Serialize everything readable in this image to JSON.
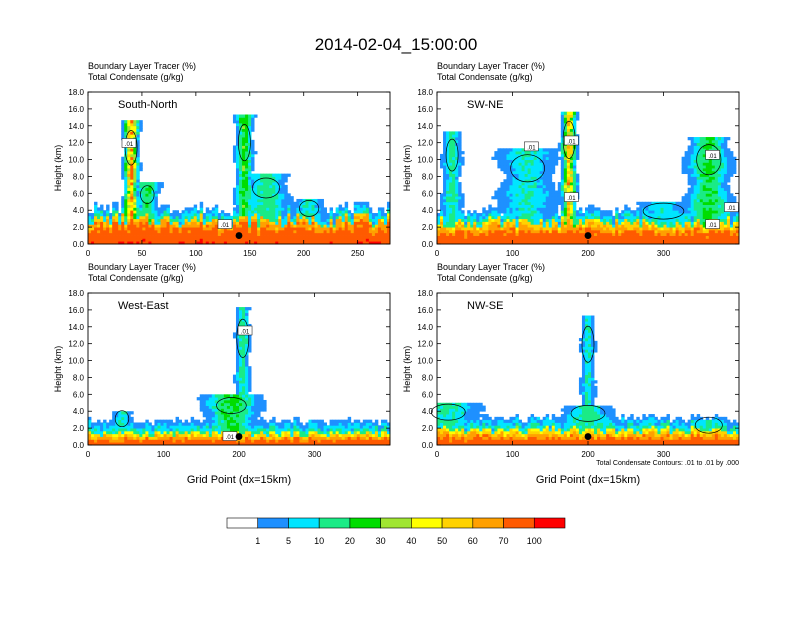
{
  "title": "2014-02-04_15:00:00",
  "chart_data": [
    {
      "type": "heatmap",
      "panel": "south-north",
      "subtitle_line1": "Boundary Layer Tracer   (%)",
      "subtitle_line2": "Total Condensate   (g/kg)",
      "label": "South-North",
      "ylabel": "Height (km)",
      "xlabel": "",
      "xlim": [
        0,
        280
      ],
      "ylim": [
        0,
        18
      ],
      "xticks": [
        "0",
        "50",
        "100",
        "150",
        "200",
        "250"
      ],
      "xtick_values": [
        0,
        50,
        100,
        150,
        200,
        250
      ],
      "yticks": [
        "0.0",
        "2.0",
        "4.0",
        "6.0",
        "8.0",
        "10.0",
        "12.0",
        "14.0",
        "16.0",
        "18.0"
      ],
      "marker": {
        "x": 140,
        "y": 1.0
      },
      "contour_labels": [
        {
          "text": ".01",
          "x": 38,
          "y": 11.9
        },
        {
          "text": ".01",
          "x": 127,
          "y": 2.3
        }
      ],
      "plumes": [
        {
          "x": 40,
          "w": 4,
          "h": 14.6,
          "v": 62
        },
        {
          "x": 55,
          "w": 7,
          "h": 7.5,
          "v": 18
        },
        {
          "x": 145,
          "w": 5,
          "h": 15.4,
          "v": 25
        },
        {
          "x": 165,
          "w": 14,
          "h": 8.5,
          "v": 14
        },
        {
          "x": 205,
          "w": 10,
          "h": 5.4,
          "v": 10
        }
      ],
      "layer": {
        "base": 55,
        "depth": 2.6
      }
    },
    {
      "type": "heatmap",
      "panel": "sw-ne",
      "subtitle_line1": "Boundary Layer Tracer   (%)",
      "subtitle_line2": "Total Condensate   (g/kg)",
      "label": "SW-NE",
      "ylabel": "Height (km)",
      "xlabel": "",
      "xlim": [
        0,
        400
      ],
      "ylim": [
        0,
        18
      ],
      "xticks": [
        "0",
        "100",
        "200",
        "300"
      ],
      "xtick_values": [
        0,
        100,
        200,
        300
      ],
      "yticks": [
        "0.0",
        "2.0",
        "4.0",
        "6.0",
        "8.0",
        "10.0",
        "12.0",
        "14.0",
        "16.0",
        "18.0"
      ],
      "marker": {
        "x": 200,
        "y": 1.0
      },
      "contour_labels": [
        {
          "text": ".01",
          "x": 125,
          "y": 11.5
        },
        {
          "text": ".01",
          "x": 178,
          "y": 12.2
        },
        {
          "text": ".01",
          "x": 178,
          "y": 5.5
        },
        {
          "text": ".01",
          "x": 365,
          "y": 10.5
        },
        {
          "text": ".01",
          "x": 390,
          "y": 4.3
        },
        {
          "text": ".01",
          "x": 365,
          "y": 2.3
        }
      ],
      "plumes": [
        {
          "x": 20,
          "w": 8,
          "h": 13.5,
          "v": 14
        },
        {
          "x": 175,
          "w": 6,
          "h": 15.8,
          "v": 55
        },
        {
          "x": 120,
          "w": 25,
          "h": 11.5,
          "v": 10
        },
        {
          "x": 360,
          "w": 18,
          "h": 12.8,
          "v": 22
        },
        {
          "x": 300,
          "w": 30,
          "h": 5.0,
          "v": 8
        }
      ],
      "layer": {
        "base": 50,
        "depth": 2.3
      }
    },
    {
      "type": "heatmap",
      "panel": "west-east",
      "subtitle_line1": "Boundary Layer Tracer   (%)",
      "subtitle_line2": "Total Condensate   (g/kg)",
      "label": "West-East",
      "ylabel": "Height (km)",
      "xlabel": "Grid Point (dx=15km)",
      "xlim": [
        0,
        400
      ],
      "ylim": [
        0,
        18
      ],
      "xticks": [
        "0",
        "100",
        "200",
        "300"
      ],
      "xtick_values": [
        0,
        100,
        200,
        300
      ],
      "yticks": [
        "0.0",
        "2.0",
        "4.0",
        "6.0",
        "8.0",
        "10.0",
        "12.0",
        "14.0",
        "16.0",
        "18.0"
      ],
      "marker": {
        "x": 200,
        "y": 1.0
      },
      "contour_labels": [
        {
          "text": ".01",
          "x": 208,
          "y": 13.5
        },
        {
          "text": ".01",
          "x": 188,
          "y": 1.0
        }
      ],
      "plumes": [
        {
          "x": 190,
          "w": 22,
          "h": 6.0,
          "v": 22
        },
        {
          "x": 45,
          "w": 10,
          "h": 4.0,
          "v": 10
        },
        {
          "x": 205,
          "w": 6,
          "h": 16.2,
          "v": 14
        }
      ],
      "layer": {
        "base": 45,
        "depth": 1.3
      }
    },
    {
      "type": "heatmap",
      "panel": "nw-se",
      "subtitle_line1": "Boundary Layer Tracer   (%)",
      "subtitle_line2": "Total Condensate   (g/kg)",
      "label": "NW-SE",
      "ylabel": "Height (km)",
      "xlabel": "Grid Point (dx=15km)",
      "xlim": [
        0,
        400
      ],
      "ylim": [
        0,
        18
      ],
      "xticks": [
        "0",
        "100",
        "200",
        "300"
      ],
      "xtick_values": [
        0,
        100,
        200,
        300
      ],
      "yticks": [
        "0.0",
        "2.0",
        "4.0",
        "6.0",
        "8.0",
        "10.0",
        "12.0",
        "14.0",
        "16.0",
        "18.0"
      ],
      "marker": {
        "x": 200,
        "y": 1.0
      },
      "contour_labels": [],
      "note": "Total Condensate Contours: .01 to .01 by .000",
      "plumes": [
        {
          "x": 15,
          "w": 25,
          "h": 5.0,
          "v": 12
        },
        {
          "x": 200,
          "w": 25,
          "h": 4.8,
          "v": 14
        },
        {
          "x": 200,
          "w": 6,
          "h": 15.3,
          "v": 10
        },
        {
          "x": 360,
          "w": 20,
          "h": 3.0,
          "v": 10
        }
      ],
      "layer": {
        "base": 45,
        "depth": 1.6
      }
    }
  ],
  "colorbar": {
    "colors": [
      "#ffffff",
      "#1e90ff",
      "#00e5ff",
      "#1aeb86",
      "#00dd00",
      "#a0e632",
      "#ffff00",
      "#ffd200",
      "#ffa000",
      "#ff5a00",
      "#ff0000"
    ],
    "labels": [
      "1",
      "5",
      "10",
      "20",
      "30",
      "40",
      "50",
      "60",
      "70",
      "100"
    ],
    "levels": [
      0,
      1,
      5,
      10,
      20,
      30,
      40,
      50,
      60,
      70,
      100
    ]
  }
}
